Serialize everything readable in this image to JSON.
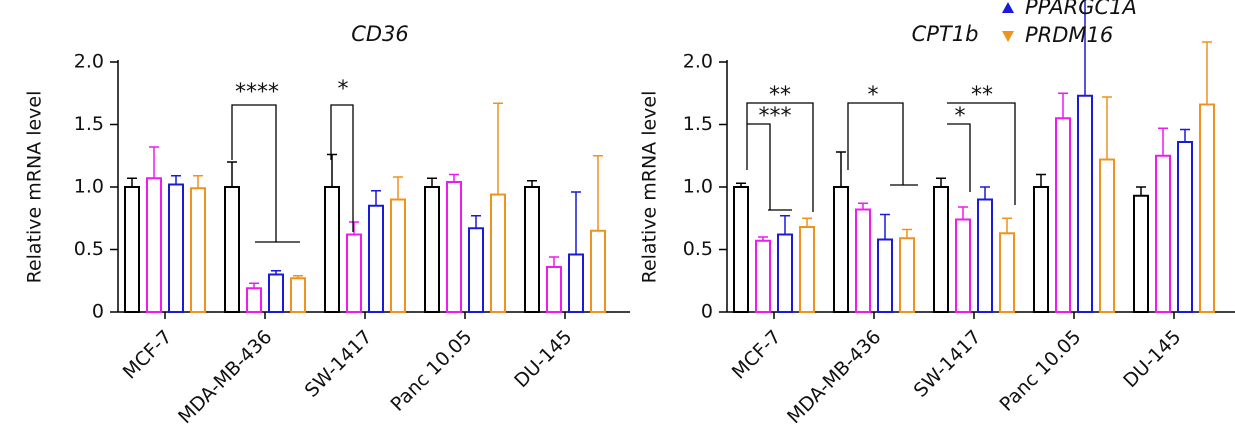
{
  "chart_data": [
    {
      "type": "bar",
      "title": "CD36",
      "y_label": "Relative mRNA level",
      "categories": [
        "MCF-7",
        "MDA-MB-436",
        "SW-1417",
        "Panc 10.05",
        "DU-145"
      ],
      "ylim": [
        0,
        2
      ],
      "yticks": [
        0,
        0.5,
        {
          "value": 1,
          "label": "1.0"
        },
        1.5,
        {
          "value": 2,
          "label": "2.0"
        }
      ],
      "series": [
        {
          "color": "#000000",
          "values": [
            1.0,
            1.0,
            1.0,
            1.0,
            1.0
          ],
          "errors": [
            0.07,
            0.2,
            0.26,
            0.07,
            0.05
          ]
        },
        {
          "color": "#f01af0",
          "values": [
            1.07,
            0.19,
            0.62,
            1.04,
            0.36
          ],
          "errors": [
            0.25,
            0.04,
            0.1,
            0.06,
            0.08
          ]
        },
        {
          "color": "#1a1adb",
          "values": [
            1.02,
            0.3,
            0.85,
            0.67,
            0.46
          ],
          "errors": [
            0.07,
            0.03,
            0.12,
            0.1,
            0.5
          ]
        },
        {
          "color": "#f0921e",
          "values": [
            0.99,
            0.27,
            0.9,
            0.94,
            0.65
          ],
          "errors": [
            0.1,
            0.02,
            0.18,
            0.73,
            0.6
          ]
        }
      ],
      "annotations": [
        "****",
        "*"
      ]
    },
    {
      "type": "bar",
      "title": "CPT1b",
      "y_label": "Relative mRNA level",
      "categories": [
        "MCF-7",
        "MDA-MB-436",
        "SW-1417",
        "Panc 10.05",
        "DU-145"
      ],
      "ylim": [
        0,
        2
      ],
      "yticks": [
        0,
        0.5,
        {
          "value": 1,
          "label": "1.0"
        },
        1.5,
        {
          "value": 2,
          "label": "2.0"
        }
      ],
      "series": [
        {
          "color": "#000000",
          "values": [
            1.0,
            1.0,
            1.0,
            1.0,
            0.93
          ],
          "errors": [
            0.03,
            0.28,
            0.07,
            0.1,
            0.07
          ]
        },
        {
          "color": "#f01af0",
          "values": [
            0.57,
            0.82,
            0.74,
            1.55,
            1.25
          ],
          "errors": [
            0.03,
            0.05,
            0.1,
            0.2,
            0.22
          ]
        },
        {
          "name": "PPARGC1A",
          "color": "#1a1adb",
          "values": [
            0.62,
            0.58,
            0.9,
            1.73,
            1.36
          ],
          "errors": [
            0.15,
            0.2,
            0.1,
            0.8,
            0.1
          ]
        },
        {
          "name": "PRDM16",
          "color": "#f0921e",
          "values": [
            0.68,
            0.59,
            0.63,
            1.22,
            1.66
          ],
          "errors": [
            0.07,
            0.07,
            0.12,
            0.5,
            0.5
          ]
        }
      ],
      "annotations": [
        "**",
        "***",
        "*",
        "*",
        "**"
      ]
    }
  ]
}
